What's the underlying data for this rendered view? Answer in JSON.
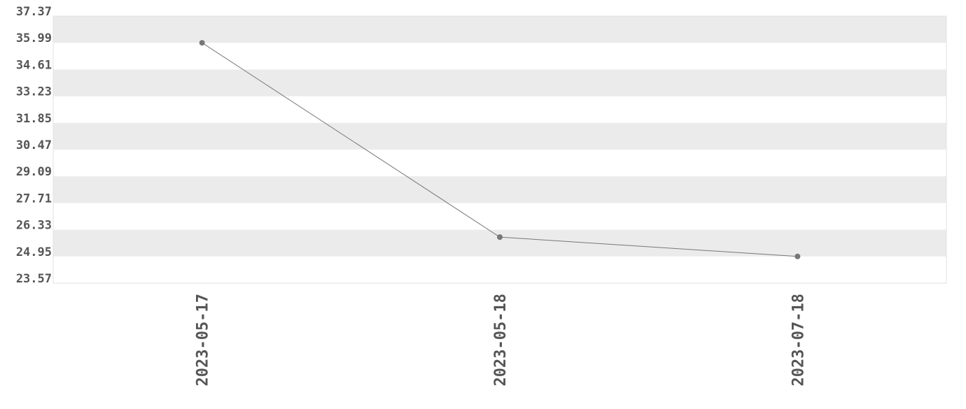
{
  "chart_data": {
    "type": "line",
    "title": "",
    "xlabel": "",
    "ylabel": "",
    "categories": [
      "2023-05-17",
      "2023-05-18",
      "2023-07-18"
    ],
    "values": [
      35.99,
      25.95,
      24.95
    ],
    "ylim": [
      23.57,
      37.37
    ],
    "yticks": [
      "37.37",
      "35.99",
      "34.61",
      "33.23",
      "31.85",
      "30.47",
      "29.09",
      "27.71",
      "26.33",
      "24.95",
      "23.57"
    ],
    "grid": "alternating horizontal bands",
    "colors": {
      "line": "#777777",
      "marker": "#777777",
      "band": "#ebebeb",
      "text": "#555555"
    }
  }
}
